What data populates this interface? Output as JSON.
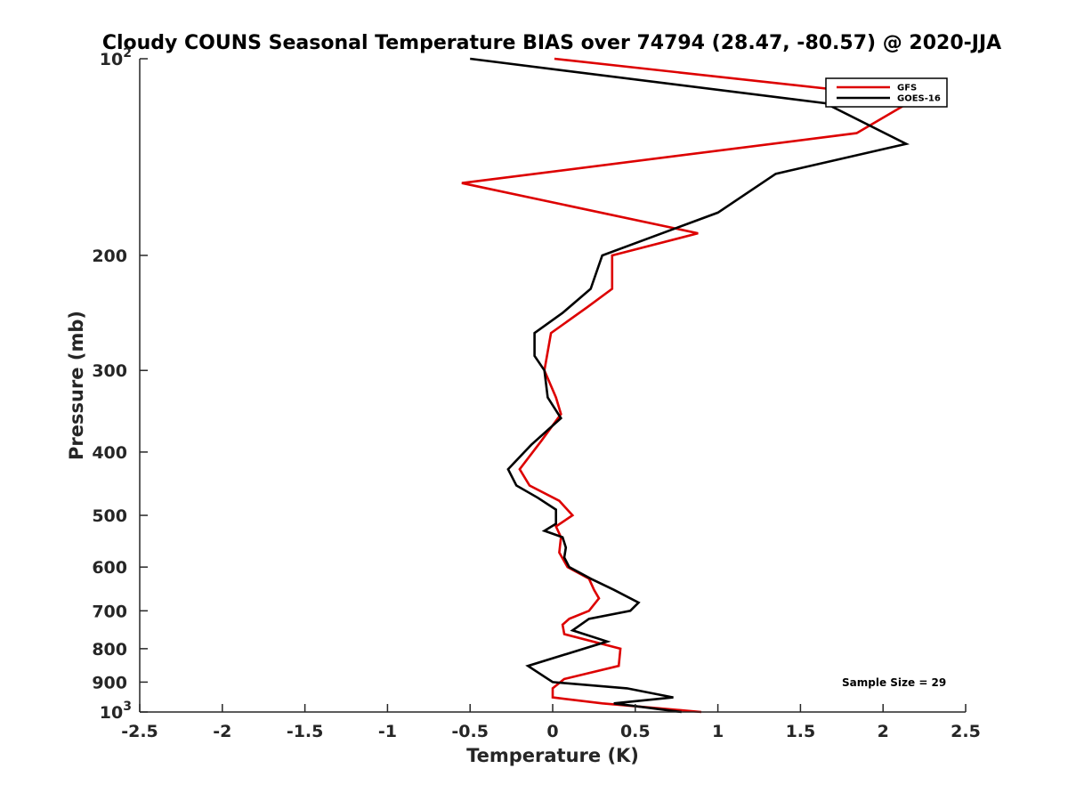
{
  "chart_data": {
    "type": "line",
    "title": "Cloudy COUNS Seasonal Temperature BIAS over 74794 (28.47, -80.57) @ 2020-JJA",
    "xlabel": "Temperature (K)",
    "ylabel": "Pressure (mb)",
    "xlim": [
      -2.5,
      2.5
    ],
    "ylim": [
      100,
      1000
    ],
    "y_scale": "log",
    "y_reversed": true,
    "x_ticks": [
      "-2.5",
      "-2",
      "-1.5",
      "-1",
      "-0.5",
      "0",
      "0.5",
      "1",
      "1.5",
      "2",
      "2.5"
    ],
    "y_ticks": [
      {
        "value": 100,
        "base": "10",
        "exp": "2"
      },
      {
        "value": 200,
        "label": "200"
      },
      {
        "value": 300,
        "label": "300"
      },
      {
        "value": 400,
        "label": "400"
      },
      {
        "value": 500,
        "label": "500"
      },
      {
        "value": 600,
        "label": "600"
      },
      {
        "value": 700,
        "label": "700"
      },
      {
        "value": 800,
        "label": "800"
      },
      {
        "value": 900,
        "label": "900"
      },
      {
        "value": 1000,
        "base": "10",
        "exp": "3"
      }
    ],
    "grid": false,
    "legend_position": "top-right",
    "annotation": "Sample Size = 29",
    "series": [
      {
        "name": "GFS",
        "color": "#dd0000",
        "points": [
          [
            0.01,
            100
          ],
          [
            2.2,
            115
          ],
          [
            1.84,
            130
          ],
          [
            -0.55,
            155
          ],
          [
            0.88,
            185
          ],
          [
            0.36,
            200
          ],
          [
            0.36,
            225
          ],
          [
            0.21,
            240
          ],
          [
            -0.01,
            263
          ],
          [
            -0.05,
            300
          ],
          [
            0.02,
            330
          ],
          [
            0.05,
            350
          ],
          [
            -0.07,
            385
          ],
          [
            -0.2,
            425
          ],
          [
            -0.14,
            450
          ],
          [
            0.04,
            475
          ],
          [
            0.12,
            500
          ],
          [
            0.02,
            520
          ],
          [
            0.05,
            540
          ],
          [
            0.04,
            570
          ],
          [
            0.09,
            600
          ],
          [
            0.22,
            625
          ],
          [
            0.25,
            650
          ],
          [
            0.28,
            670
          ],
          [
            0.22,
            700
          ],
          [
            0.1,
            720
          ],
          [
            0.06,
            735
          ],
          [
            0.07,
            760
          ],
          [
            0.41,
            800
          ],
          [
            0.4,
            850
          ],
          [
            0.07,
            890
          ],
          [
            0.0,
            920
          ],
          [
            0.0,
            950
          ],
          [
            0.3,
            970
          ],
          [
            0.9,
            1000
          ]
        ]
      },
      {
        "name": "GOES-16",
        "color": "#000000",
        "points": [
          [
            -0.5,
            100
          ],
          [
            1.65,
            117
          ],
          [
            2.14,
            135
          ],
          [
            1.35,
            150
          ],
          [
            1.0,
            172
          ],
          [
            0.3,
            200
          ],
          [
            0.23,
            225
          ],
          [
            0.06,
            245
          ],
          [
            -0.11,
            263
          ],
          [
            -0.11,
            285
          ],
          [
            -0.05,
            300
          ],
          [
            -0.03,
            330
          ],
          [
            0.05,
            355
          ],
          [
            -0.13,
            390
          ],
          [
            -0.27,
            425
          ],
          [
            -0.22,
            450
          ],
          [
            -0.09,
            470
          ],
          [
            0.02,
            490
          ],
          [
            0.02,
            515
          ],
          [
            -0.05,
            528
          ],
          [
            0.06,
            540
          ],
          [
            0.08,
            560
          ],
          [
            0.07,
            580
          ],
          [
            0.1,
            600
          ],
          [
            0.23,
            625
          ],
          [
            0.37,
            650
          ],
          [
            0.52,
            680
          ],
          [
            0.47,
            700
          ],
          [
            0.22,
            720
          ],
          [
            0.12,
            750
          ],
          [
            0.33,
            780
          ],
          [
            -0.15,
            850
          ],
          [
            0.0,
            900
          ],
          [
            0.45,
            920
          ],
          [
            0.73,
            950
          ],
          [
            0.37,
            970
          ],
          [
            0.78,
            1000
          ]
        ]
      }
    ]
  }
}
